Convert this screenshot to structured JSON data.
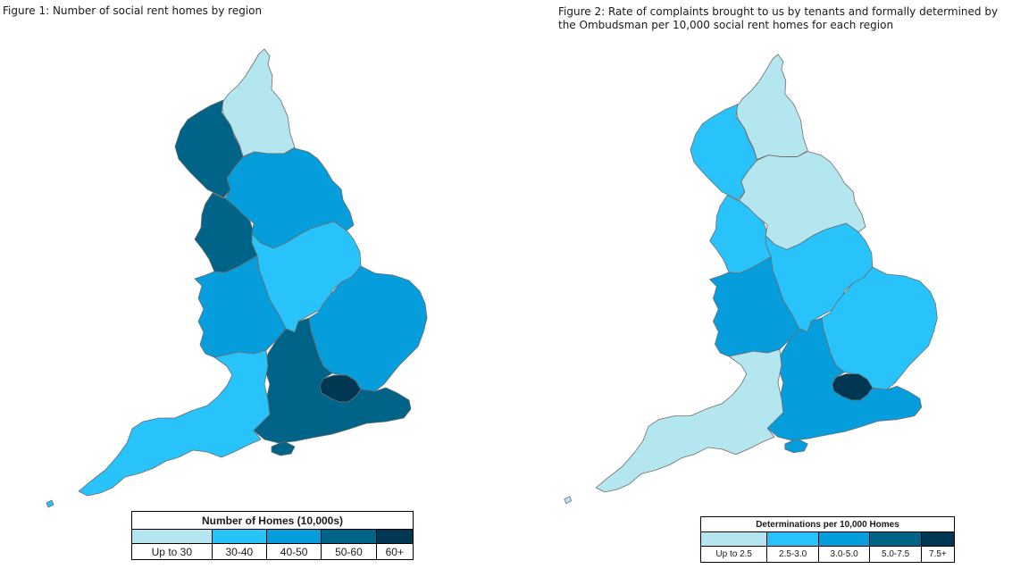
{
  "figures": [
    {
      "title": "Figure 1: Number of social rent homes by region",
      "legend": {
        "title": "Number of Homes (10,000s)",
        "classes": [
          {
            "label": "Up to 30",
            "color": "#b4e6f0"
          },
          {
            "label": "30-40",
            "color": "#29c3fb"
          },
          {
            "label": "40-50",
            "color": "#069ddd"
          },
          {
            "label": "50-60",
            "color": "#006388"
          },
          {
            "label": "60+",
            "color": "#003752"
          }
        ]
      },
      "regions": {
        "north-east": "#b4e6f0",
        "north-west": "#006388",
        "yorkshire-humber": "#069ddd",
        "east-midlands": "#29c3fb",
        "west-midlands": "#069ddd",
        "east-of-england": "#069ddd",
        "london": "#003752",
        "south-east": "#006388",
        "south-west": "#29c3fb"
      }
    },
    {
      "title": "Figure 2: Rate of complaints brought to us by tenants and formally determined by the Ombudsman per 10,000 social rent homes for each region",
      "legend": {
        "title": "Determinations per 10,000 Homes",
        "classes": [
          {
            "label": "Up to 2.5",
            "color": "#b4e6f0"
          },
          {
            "label": "2.5-3.0",
            "color": "#29c3fb"
          },
          {
            "label": "3.0-5.0",
            "color": "#069ddd"
          },
          {
            "label": "5.0-7.5",
            "color": "#006388"
          },
          {
            "label": "7.5+",
            "color": "#003752"
          }
        ]
      },
      "regions": {
        "north-east": "#b4e6f0",
        "north-west": "#29c3fb",
        "yorkshire-humber": "#b4e6f0",
        "east-midlands": "#29c3fb",
        "west-midlands": "#069ddd",
        "east-of-england": "#29c3fb",
        "london": "#003752",
        "south-east": "#069ddd",
        "south-west": "#b4e6f0"
      }
    }
  ]
}
